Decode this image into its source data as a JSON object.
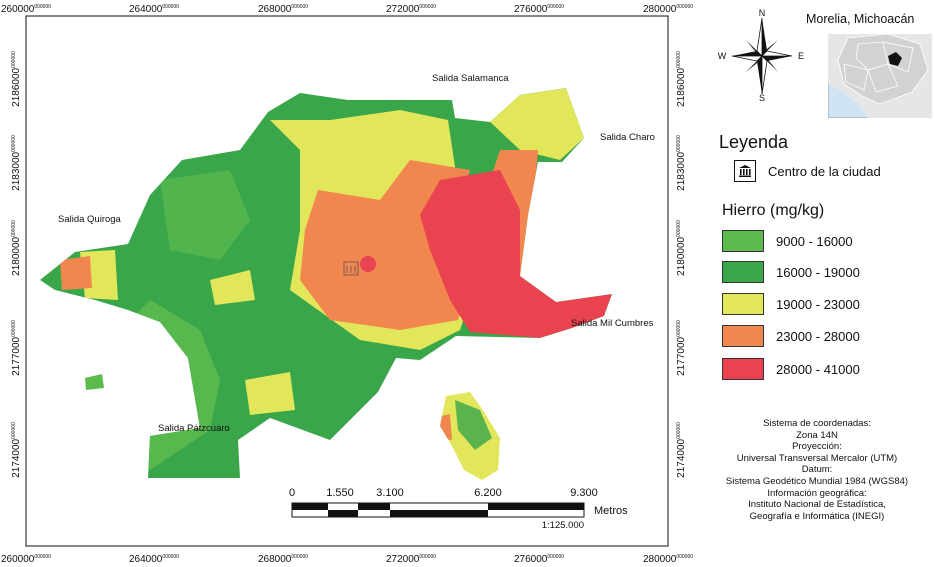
{
  "map": {
    "x_ticks": [
      "260000",
      "264000",
      "268000",
      "272000",
      "276000",
      "280000"
    ],
    "y_ticks": [
      "2186000",
      "2183000",
      "2180000",
      "2177000",
      "2174000"
    ],
    "tick_superscript": "000000",
    "places": {
      "salamanca": "Salida Salamanca",
      "charo": "Salida Charo",
      "quiroga": "Salida Quiroga",
      "mil_cumbres": "Salida Mil Cumbres",
      "patzcuaro": "Salida Pátzcuaro"
    }
  },
  "compass": {
    "n": "N",
    "s": "S",
    "e": "E",
    "w": "W"
  },
  "inset": {
    "title": "Morelia, Michoacán"
  },
  "legend": {
    "title": "Leyenda",
    "center_label": "Centro de la ciudad",
    "center_icon": "building-columns-icon",
    "variable_title": "Hierro (mg/kg)",
    "classes": [
      {
        "label": "9000 - 16000",
        "color": "#5dbb4e"
      },
      {
        "label": "16000 - 19000",
        "color": "#3aa64a"
      },
      {
        "label": "19000 - 23000",
        "color": "#e2e65a"
      },
      {
        "label": "23000 - 28000",
        "color": "#f2864f"
      },
      {
        "label": "28000 - 41000",
        "color": "#e8434f"
      }
    ]
  },
  "scale": {
    "labels": [
      "0",
      "1.550",
      "3.100",
      "6.200",
      "9.300"
    ],
    "unit": "Metros",
    "ratio": "1:125.000"
  },
  "metadata": {
    "lines": [
      "Sistema de coordenadas:",
      "Zona 14N",
      "Proyección:",
      "Universal Transversal Mercalor (UTM)",
      "Datum:",
      "Sistema Geodético Mundial 1984 (WGS84)",
      "Información geográfica:",
      "Instituto Nacional de Estadística,",
      "Geografía e Informática (INEGI)"
    ]
  }
}
